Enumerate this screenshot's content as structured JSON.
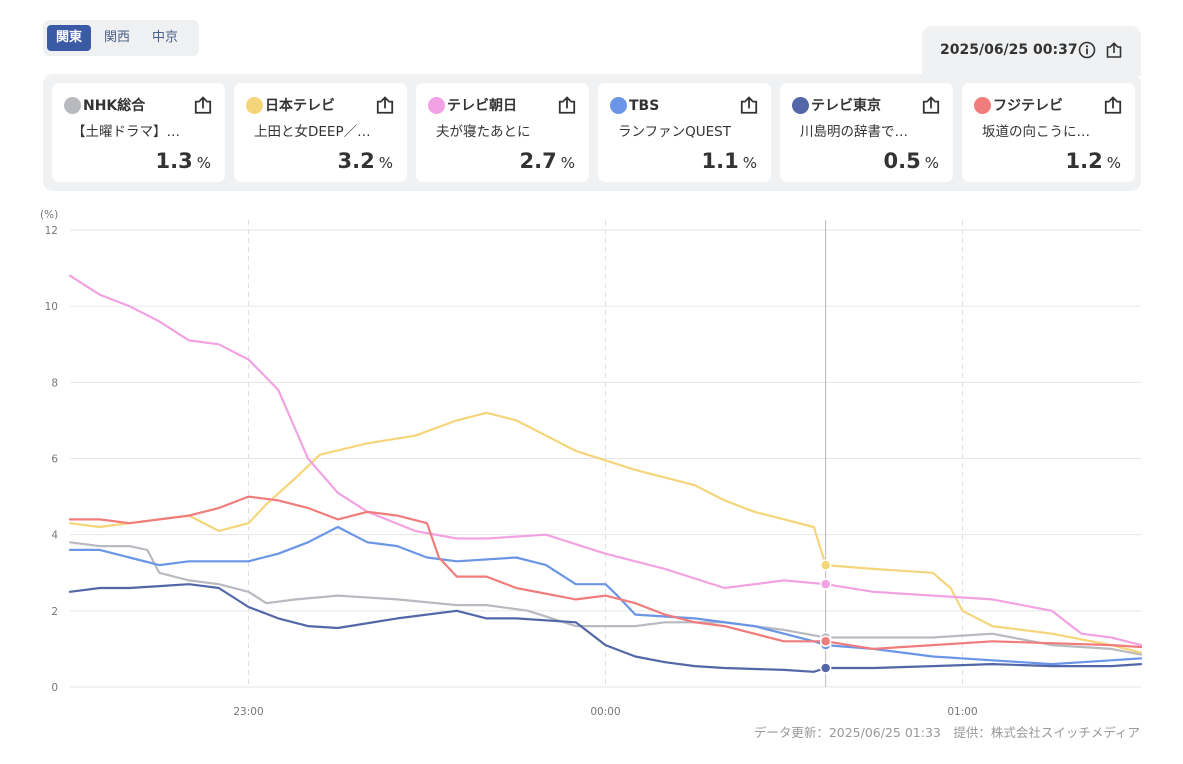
{
  "regions": [
    "関東",
    "関西",
    "中京"
  ],
  "active_region": "関東",
  "timestamp": "2025/06/25 00:37",
  "icons": {
    "info": "info-circle-icon",
    "share": "share-upload-icon"
  },
  "channels": [
    {
      "name": "NHK総合",
      "program": "【土曜ドラマ】…",
      "rating": "1.3",
      "unit": "%",
      "color": "#b8bac0"
    },
    {
      "name": "日本テレビ",
      "program": "上田と女DEEP／…",
      "rating": "3.2",
      "unit": "%",
      "color": "#f5d57a"
    },
    {
      "name": "テレビ朝日",
      "program": "夫が寝たあとに",
      "rating": "2.7",
      "unit": "%",
      "color": "#f2a2e2"
    },
    {
      "name": "TBS",
      "program": "ランファンQUEST",
      "rating": "1.1",
      "unit": "%",
      "color": "#6b95e6"
    },
    {
      "name": "テレビ東京",
      "program": "川島明の辞書で…",
      "rating": "0.5",
      "unit": "%",
      "color": "#5367a8"
    },
    {
      "name": "フジテレビ",
      "program": "坂道の向こうに…",
      "rating": "1.2",
      "unit": "%",
      "color": "#f07c7c"
    }
  ],
  "chart_data": {
    "type": "line",
    "ylabel": "(%)",
    "ylim": [
      0,
      12
    ],
    "yticks": [
      0,
      2,
      4,
      6,
      8,
      10,
      12
    ],
    "xlim": [
      "22:30",
      "01:30"
    ],
    "xticks": [
      "23:00",
      "00:00",
      "01:00"
    ],
    "cursor": "00:37",
    "grid": true,
    "legend": "none",
    "series": [
      {
        "name": "NHK総合",
        "color": "#b8bac0",
        "points": [
          [
            "22:30",
            3.8
          ],
          [
            "22:35",
            3.7
          ],
          [
            "22:40",
            3.7
          ],
          [
            "22:43",
            3.6
          ],
          [
            "22:45",
            3.0
          ],
          [
            "22:50",
            2.8
          ],
          [
            "22:55",
            2.7
          ],
          [
            "23:00",
            2.5
          ],
          [
            "23:03",
            2.2
          ],
          [
            "23:08",
            2.3
          ],
          [
            "23:15",
            2.4
          ],
          [
            "23:25",
            2.3
          ],
          [
            "23:35",
            2.15
          ],
          [
            "23:40",
            2.15
          ],
          [
            "23:47",
            2.0
          ],
          [
            "23:55",
            1.6
          ],
          [
            "00:05",
            1.6
          ],
          [
            "00:10",
            1.7
          ],
          [
            "00:20",
            1.7
          ],
          [
            "00:30",
            1.5
          ],
          [
            "00:37",
            1.3
          ],
          [
            "00:45",
            1.3
          ],
          [
            "00:55",
            1.3
          ],
          [
            "01:05",
            1.4
          ],
          [
            "01:15",
            1.1
          ],
          [
            "01:25",
            1.0
          ],
          [
            "01:30",
            0.85
          ]
        ]
      },
      {
        "name": "日本テレビ",
        "color": "#f5d57a",
        "points": [
          [
            "22:30",
            4.3
          ],
          [
            "22:35",
            4.2
          ],
          [
            "22:40",
            4.3
          ],
          [
            "22:45",
            4.4
          ],
          [
            "22:50",
            4.5
          ],
          [
            "22:55",
            4.1
          ],
          [
            "23:00",
            4.3
          ],
          [
            "23:03",
            4.8
          ],
          [
            "23:08",
            5.5
          ],
          [
            "23:12",
            6.1
          ],
          [
            "23:20",
            6.4
          ],
          [
            "23:28",
            6.6
          ],
          [
            "23:35",
            7.0
          ],
          [
            "23:40",
            7.2
          ],
          [
            "23:45",
            7.0
          ],
          [
            "23:55",
            6.2
          ],
          [
            "00:05",
            5.7
          ],
          [
            "00:15",
            5.3
          ],
          [
            "00:20",
            4.9
          ],
          [
            "00:25",
            4.6
          ],
          [
            "00:35",
            4.2
          ],
          [
            "00:37",
            3.2
          ],
          [
            "00:45",
            3.1
          ],
          [
            "00:55",
            3.0
          ],
          [
            "00:58",
            2.6
          ],
          [
            "01:00",
            2.0
          ],
          [
            "01:05",
            1.6
          ],
          [
            "01:15",
            1.4
          ],
          [
            "01:25",
            1.1
          ],
          [
            "01:30",
            0.9
          ]
        ]
      },
      {
        "name": "テレビ朝日",
        "color": "#f2a2e2",
        "points": [
          [
            "22:30",
            10.8
          ],
          [
            "22:35",
            10.3
          ],
          [
            "22:40",
            10.0
          ],
          [
            "22:45",
            9.6
          ],
          [
            "22:50",
            9.1
          ],
          [
            "22:55",
            9.0
          ],
          [
            "23:00",
            8.6
          ],
          [
            "23:05",
            7.8
          ],
          [
            "23:10",
            6.0
          ],
          [
            "23:15",
            5.1
          ],
          [
            "23:20",
            4.6
          ],
          [
            "23:28",
            4.1
          ],
          [
            "23:35",
            3.9
          ],
          [
            "23:40",
            3.9
          ],
          [
            "23:50",
            4.0
          ],
          [
            "00:00",
            3.5
          ],
          [
            "00:10",
            3.1
          ],
          [
            "00:20",
            2.6
          ],
          [
            "00:30",
            2.8
          ],
          [
            "00:37",
            2.7
          ],
          [
            "00:45",
            2.5
          ],
          [
            "00:55",
            2.4
          ],
          [
            "01:05",
            2.3
          ],
          [
            "01:15",
            2.0
          ],
          [
            "01:20",
            1.4
          ],
          [
            "01:25",
            1.3
          ],
          [
            "01:30",
            1.1
          ]
        ]
      },
      {
        "name": "TBS",
        "color": "#6b95e6",
        "points": [
          [
            "22:30",
            3.6
          ],
          [
            "22:35",
            3.6
          ],
          [
            "22:40",
            3.4
          ],
          [
            "22:45",
            3.2
          ],
          [
            "22:50",
            3.3
          ],
          [
            "22:55",
            3.3
          ],
          [
            "23:00",
            3.3
          ],
          [
            "23:05",
            3.5
          ],
          [
            "23:10",
            3.8
          ],
          [
            "23:15",
            4.2
          ],
          [
            "23:20",
            3.8
          ],
          [
            "23:25",
            3.7
          ],
          [
            "23:30",
            3.4
          ],
          [
            "23:35",
            3.3
          ],
          [
            "23:45",
            3.4
          ],
          [
            "23:50",
            3.2
          ],
          [
            "23:55",
            2.7
          ],
          [
            "00:00",
            2.7
          ],
          [
            "00:02",
            2.4
          ],
          [
            "00:05",
            1.9
          ],
          [
            "00:15",
            1.8
          ],
          [
            "00:25",
            1.6
          ],
          [
            "00:35",
            1.2
          ],
          [
            "00:37",
            1.1
          ],
          [
            "00:45",
            1.0
          ],
          [
            "00:55",
            0.8
          ],
          [
            "01:05",
            0.7
          ],
          [
            "01:15",
            0.6
          ],
          [
            "01:25",
            0.7
          ],
          [
            "01:30",
            0.75
          ]
        ]
      },
      {
        "name": "テレビ東京",
        "color": "#5367a8",
        "points": [
          [
            "22:30",
            2.5
          ],
          [
            "22:35",
            2.6
          ],
          [
            "22:40",
            2.6
          ],
          [
            "22:45",
            2.65
          ],
          [
            "22:50",
            2.7
          ],
          [
            "22:55",
            2.6
          ],
          [
            "23:00",
            2.1
          ],
          [
            "23:05",
            1.8
          ],
          [
            "23:10",
            1.6
          ],
          [
            "23:15",
            1.55
          ],
          [
            "23:25",
            1.8
          ],
          [
            "23:35",
            2.0
          ],
          [
            "23:40",
            1.8
          ],
          [
            "23:45",
            1.8
          ],
          [
            "23:55",
            1.7
          ],
          [
            "00:00",
            1.1
          ],
          [
            "00:05",
            0.8
          ],
          [
            "00:10",
            0.65
          ],
          [
            "00:15",
            0.55
          ],
          [
            "00:20",
            0.5
          ],
          [
            "00:30",
            0.45
          ],
          [
            "00:35",
            0.4
          ],
          [
            "00:37",
            0.5
          ],
          [
            "00:45",
            0.5
          ],
          [
            "00:55",
            0.55
          ],
          [
            "01:05",
            0.6
          ],
          [
            "01:15",
            0.55
          ],
          [
            "01:25",
            0.55
          ],
          [
            "01:30",
            0.6
          ]
        ]
      },
      {
        "name": "フジテレビ",
        "color": "#f07c7c",
        "points": [
          [
            "22:30",
            4.4
          ],
          [
            "22:35",
            4.4
          ],
          [
            "22:40",
            4.3
          ],
          [
            "22:45",
            4.4
          ],
          [
            "22:50",
            4.5
          ],
          [
            "22:55",
            4.7
          ],
          [
            "23:00",
            5.0
          ],
          [
            "23:05",
            4.9
          ],
          [
            "23:10",
            4.7
          ],
          [
            "23:15",
            4.4
          ],
          [
            "23:20",
            4.6
          ],
          [
            "23:25",
            4.5
          ],
          [
            "23:30",
            4.3
          ],
          [
            "23:32",
            3.4
          ],
          [
            "23:35",
            2.9
          ],
          [
            "23:40",
            2.9
          ],
          [
            "23:45",
            2.6
          ],
          [
            "23:55",
            2.3
          ],
          [
            "00:00",
            2.4
          ],
          [
            "00:05",
            2.2
          ],
          [
            "00:10",
            1.9
          ],
          [
            "00:15",
            1.7
          ],
          [
            "00:20",
            1.6
          ],
          [
            "00:30",
            1.2
          ],
          [
            "00:37",
            1.2
          ],
          [
            "00:45",
            1.0
          ],
          [
            "00:55",
            1.1
          ],
          [
            "01:05",
            1.2
          ],
          [
            "01:15",
            1.15
          ],
          [
            "01:25",
            1.1
          ],
          [
            "01:30",
            1.05
          ]
        ]
      }
    ]
  },
  "footer": "データ更新：2025/06/25 01:33　提供：株式会社スイッチメディア"
}
